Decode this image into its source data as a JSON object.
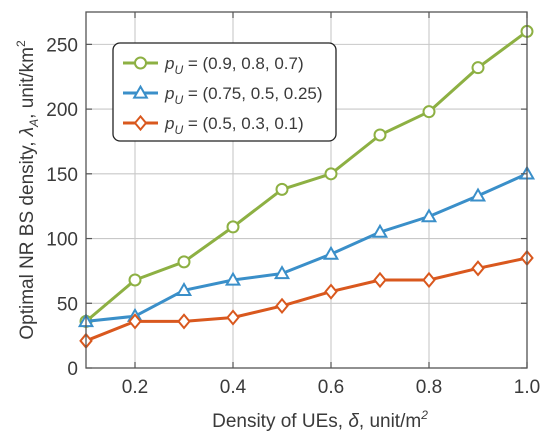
{
  "chart_data": {
    "type": "line",
    "x": [
      0.1,
      0.2,
      0.3,
      0.4,
      0.5,
      0.6,
      0.7,
      0.8,
      0.9,
      1.0
    ],
    "xlim": [
      0.1,
      1.0
    ],
    "ylim": [
      0,
      275
    ],
    "xticks": [
      0.2,
      0.4,
      0.6,
      0.8,
      1.0
    ],
    "xtick_labels": [
      "0.2",
      "0.4",
      "0.6",
      "0.8",
      "1.0"
    ],
    "yticks": [
      0,
      50,
      100,
      150,
      200,
      250
    ],
    "ytick_labels": [
      "0",
      "50",
      "100",
      "150",
      "200",
      "250"
    ],
    "xlabel": {
      "prefix": "Density of UEs, ",
      "symbol": "δ",
      "suffix": ", unit/m",
      "sup": "2"
    },
    "ylabel": {
      "prefix": "Optimal NR BS density, ",
      "symbol": "λ",
      "symbol_sub": "A",
      "suffix": ", unit/km",
      "sup": "2"
    },
    "grid": true,
    "legend_position": "top-left",
    "legend_symbol": "p",
    "legend_symbol_sub": "U",
    "series": [
      {
        "name": " = (0.9, 0.8, 0.7)",
        "marker": "circle",
        "color": "#8db043",
        "values": [
          36,
          68,
          82,
          109,
          138,
          150,
          180,
          198,
          232,
          260
        ]
      },
      {
        "name": " = (0.75, 0.5, 0.25)",
        "marker": "triangle",
        "color": "#3a8fc9",
        "values": [
          36,
          40,
          60,
          68,
          73,
          88,
          105,
          117,
          133,
          150
        ]
      },
      {
        "name": " = (0.5, 0.3, 0.1)",
        "marker": "diamond",
        "color": "#d9581e",
        "values": [
          21,
          36,
          36,
          39,
          48,
          59,
          68,
          68,
          77,
          85
        ]
      }
    ]
  }
}
